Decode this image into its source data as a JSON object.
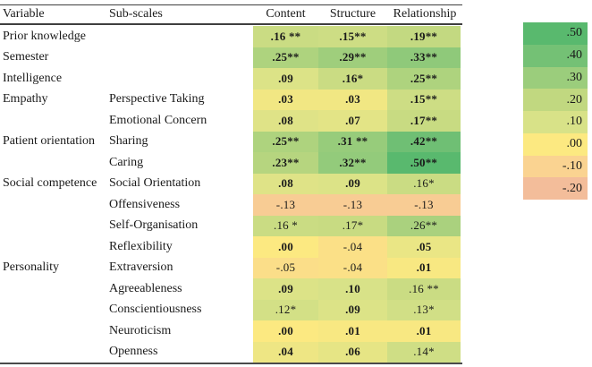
{
  "colors": {
    "background": "#ffffff",
    "text": "#1a1a1a",
    "rule": "#3f3f3f"
  },
  "chart_data": {
    "type": "heatmap",
    "title": "",
    "row_header_columns": [
      "Variable",
      "Sub-scales"
    ],
    "columns": [
      "Content",
      "Structure",
      "Relationship"
    ],
    "rows": [
      {
        "variable": "Prior knowledge",
        "subscale": "",
        "labels": [
          ".16 **",
          ".15**",
          ".19**"
        ],
        "values": [
          0.16,
          0.15,
          0.19
        ],
        "bold": [
          true,
          true,
          true
        ]
      },
      {
        "variable": "Semester",
        "subscale": "",
        "labels": [
          ".25**",
          ".29**",
          ".33**"
        ],
        "values": [
          0.25,
          0.29,
          0.33
        ],
        "bold": [
          true,
          true,
          true
        ]
      },
      {
        "variable": "Intelligence",
        "subscale": "",
        "labels": [
          ".09",
          ".16*",
          ".25**"
        ],
        "values": [
          0.09,
          0.16,
          0.25
        ],
        "bold": [
          true,
          true,
          true
        ]
      },
      {
        "variable": "Empathy",
        "subscale": "Perspective Taking",
        "labels": [
          ".03",
          ".03",
          ".15**"
        ],
        "values": [
          0.03,
          0.03,
          0.15
        ],
        "bold": [
          true,
          true,
          true
        ]
      },
      {
        "variable": "",
        "subscale": "Emotional Concern",
        "labels": [
          ".08",
          ".07",
          ".17**"
        ],
        "values": [
          0.08,
          0.07,
          0.17
        ],
        "bold": [
          true,
          true,
          true
        ]
      },
      {
        "variable": "Patient orientation",
        "subscale": "Sharing",
        "labels": [
          ".25**",
          ".31 **",
          ".42**"
        ],
        "values": [
          0.25,
          0.31,
          0.42
        ],
        "bold": [
          true,
          true,
          true
        ]
      },
      {
        "variable": "",
        "subscale": "Caring",
        "labels": [
          ".23**",
          ".32**",
          ".50**"
        ],
        "values": [
          0.23,
          0.32,
          0.5
        ],
        "bold": [
          true,
          true,
          true
        ]
      },
      {
        "variable": "Social competence",
        "subscale": "Social Orientation",
        "labels": [
          ".08",
          ".09",
          ".16*"
        ],
        "values": [
          0.08,
          0.09,
          0.16
        ],
        "bold": [
          true,
          true,
          false
        ]
      },
      {
        "variable": "",
        "subscale": "Offensiveness",
        "labels": [
          "-.13",
          "-.13",
          "-.13"
        ],
        "values": [
          -0.13,
          -0.13,
          -0.13
        ],
        "bold": [
          false,
          false,
          false
        ]
      },
      {
        "variable": "",
        "subscale": "Self-Organisation",
        "labels": [
          ".16 *",
          ".17*",
          ".26**"
        ],
        "values": [
          0.16,
          0.17,
          0.26
        ],
        "bold": [
          false,
          false,
          false
        ]
      },
      {
        "variable": "",
        "subscale": "Reflexibility",
        "labels": [
          ".00",
          "-.04",
          ".05"
        ],
        "values": [
          0.0,
          -0.04,
          0.05
        ],
        "bold": [
          true,
          false,
          true
        ]
      },
      {
        "variable": "Personality",
        "subscale": "Extraversion",
        "labels": [
          "-.05",
          "-.04",
          ".01"
        ],
        "values": [
          -0.05,
          -0.04,
          0.01
        ],
        "bold": [
          false,
          false,
          true
        ]
      },
      {
        "variable": "",
        "subscale": "Agreeableness",
        "labels": [
          ".09",
          ".10",
          ".16 **"
        ],
        "values": [
          0.09,
          0.1,
          0.16
        ],
        "bold": [
          true,
          true,
          false
        ]
      },
      {
        "variable": "",
        "subscale": "Conscientiousness",
        "labels": [
          ".12*",
          ".09",
          ".13*"
        ],
        "values": [
          0.12,
          0.09,
          0.13
        ],
        "bold": [
          false,
          true,
          false
        ]
      },
      {
        "variable": "",
        "subscale": "Neuroticism",
        "labels": [
          ".00",
          ".01",
          ".01"
        ],
        "values": [
          0.0,
          0.01,
          0.01
        ],
        "bold": [
          true,
          true,
          true
        ]
      },
      {
        "variable": "",
        "subscale": "Openness",
        "labels": [
          ".04",
          ".06",
          ".14*"
        ],
        "values": [
          0.04,
          0.06,
          0.14
        ],
        "bold": [
          true,
          true,
          false
        ]
      }
    ],
    "legend": {
      "position": "right",
      "entries": [
        {
          "label": ".50",
          "value": 0.5
        },
        {
          "label": ".40",
          "value": 0.4
        },
        {
          "label": ".30",
          "value": 0.3
        },
        {
          "label": ".20",
          "value": 0.2
        },
        {
          "label": ".10",
          "value": 0.1
        },
        {
          "label": ".00",
          "value": 0.0
        },
        {
          "label": "-.10",
          "value": -0.1
        },
        {
          "label": "-.20",
          "value": -0.2
        }
      ]
    },
    "colorscale": [
      [
        -0.2,
        "#f3bd9a"
      ],
      [
        -0.1,
        "#fad391"
      ],
      [
        0.0,
        "#fce981"
      ],
      [
        0.1,
        "#d8e288"
      ],
      [
        0.2,
        "#c1d880"
      ],
      [
        0.3,
        "#9bcd7c"
      ],
      [
        0.4,
        "#74c175"
      ],
      [
        0.5,
        "#59b96e"
      ]
    ]
  }
}
